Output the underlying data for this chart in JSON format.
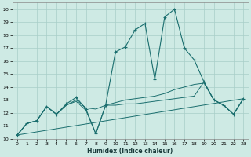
{
  "xlabel": "Humidex (Indice chaleur)",
  "bg_color": "#ceeae4",
  "grid_color": "#a8cec8",
  "line_color": "#1a6e6e",
  "xlim": [
    -0.5,
    23.5
  ],
  "ylim": [
    10,
    20.5
  ],
  "xticks": [
    0,
    1,
    2,
    3,
    4,
    5,
    6,
    7,
    8,
    9,
    10,
    11,
    12,
    13,
    14,
    15,
    16,
    17,
    18,
    19,
    20,
    21,
    22,
    23
  ],
  "yticks": [
    10,
    11,
    12,
    13,
    14,
    15,
    16,
    17,
    18,
    19,
    20
  ],
  "series1_x": [
    0,
    1,
    2,
    3,
    4,
    5,
    6,
    7,
    8,
    9,
    10,
    11,
    12,
    13,
    14,
    15,
    16,
    17,
    18,
    19,
    20,
    21,
    22,
    23
  ],
  "series1_y": [
    10.3,
    11.2,
    11.4,
    12.5,
    11.9,
    12.7,
    13.2,
    12.3,
    10.4,
    12.6,
    16.7,
    17.1,
    18.4,
    18.9,
    14.6,
    19.4,
    20.0,
    17.0,
    16.1,
    14.4,
    13.0,
    12.6,
    11.9,
    13.1
  ],
  "series2_x": [
    0,
    1,
    2,
    3,
    4,
    5,
    6,
    7,
    8,
    9,
    10,
    11,
    12,
    13,
    14,
    15,
    16,
    17,
    18,
    19,
    20,
    21,
    22,
    23
  ],
  "series2_y": [
    10.3,
    11.2,
    11.4,
    12.5,
    11.9,
    12.6,
    13.0,
    12.4,
    12.3,
    12.6,
    12.8,
    13.0,
    13.1,
    13.2,
    13.3,
    13.5,
    13.8,
    14.0,
    14.2,
    14.3,
    13.0,
    12.6,
    11.9,
    13.1
  ],
  "series3_x": [
    0,
    23
  ],
  "series3_y": [
    10.3,
    13.1
  ],
  "series4_x": [
    0,
    1,
    2,
    3,
    4,
    5,
    6,
    7,
    8,
    9,
    10,
    11,
    12,
    13,
    14,
    15,
    16,
    17,
    18,
    19,
    20,
    21,
    22,
    23
  ],
  "series4_y": [
    10.3,
    11.2,
    11.4,
    12.5,
    11.9,
    12.6,
    12.9,
    12.2,
    10.4,
    12.6,
    12.6,
    12.7,
    12.7,
    12.8,
    12.9,
    13.0,
    13.1,
    13.2,
    13.3,
    14.4,
    13.0,
    12.6,
    11.9,
    13.1
  ]
}
